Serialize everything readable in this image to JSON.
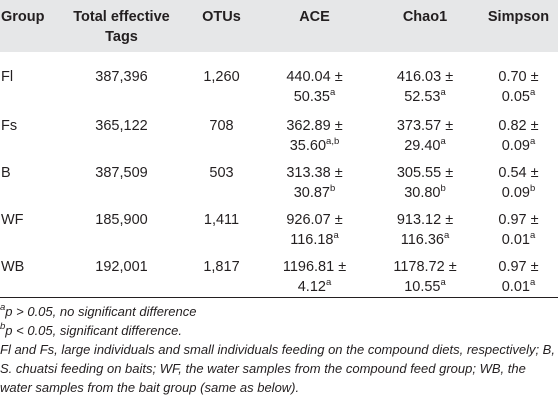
{
  "table": {
    "headers": {
      "group": "Group",
      "tags_line1": "Total effective",
      "tags_line2": "Tags",
      "otus": "OTUs",
      "ace": "ACE",
      "chao1": "Chao1",
      "simpson": "Simpson"
    },
    "rows": [
      {
        "group": "Fl",
        "tags": "387,396",
        "otus": "1,260",
        "ace_a": "440.04 ±",
        "ace_b": "50.35",
        "ace_sup": "a",
        "chao_a": "416.03 ±",
        "chao_b": "52.53",
        "chao_sup": "a",
        "simp_a": "0.70 ±",
        "simp_b": "0.05",
        "simp_sup": "a"
      },
      {
        "group": "Fs",
        "tags": "365,122",
        "otus": "708",
        "ace_a": "362.89 ±",
        "ace_b": "35.60",
        "ace_sup": "a,b",
        "chao_a": "373.57 ±",
        "chao_b": "29.40",
        "chao_sup": "a",
        "simp_a": "0.82 ±",
        "simp_b": "0.09",
        "simp_sup": "a"
      },
      {
        "group": "B",
        "tags": "387,509",
        "otus": "503",
        "ace_a": "313.38 ±",
        "ace_b": "30.87",
        "ace_sup": "b",
        "chao_a": "305.55 ±",
        "chao_b": "30.80",
        "chao_sup": "b",
        "simp_a": "0.54 ±",
        "simp_b": "0.09",
        "simp_sup": "b"
      },
      {
        "group": "WF",
        "tags": "185,900",
        "otus": "1,411",
        "ace_a": "926.07 ±",
        "ace_b": "116.18",
        "ace_sup": "a",
        "chao_a": "913.12 ±",
        "chao_b": "116.36",
        "chao_sup": "a",
        "simp_a": "0.97 ±",
        "simp_b": "0.01",
        "simp_sup": "a"
      },
      {
        "group": "WB",
        "tags": "192,001",
        "otus": "1,817",
        "ace_a": "1196.81 ±",
        "ace_b": "4.12",
        "ace_sup": "a",
        "chao_a": "1178.72 ±",
        "chao_b": "10.55",
        "chao_sup": "a",
        "simp_a": "0.97 ±",
        "simp_b": "0.01",
        "simp_sup": "a"
      }
    ]
  },
  "notes": {
    "a_sup": "a",
    "a_text": "p > 0.05, no significant difference",
    "b_sup": "b",
    "b_text": "p < 0.05, significant difference.",
    "legend": "Fl and Fs, large individuals and small individuals feeding on the compound diets, respectively; B, S. chuatsi feeding on baits; WF, the water samples from the compound feed group; WB, the water samples from the bait group (same as below)."
  }
}
